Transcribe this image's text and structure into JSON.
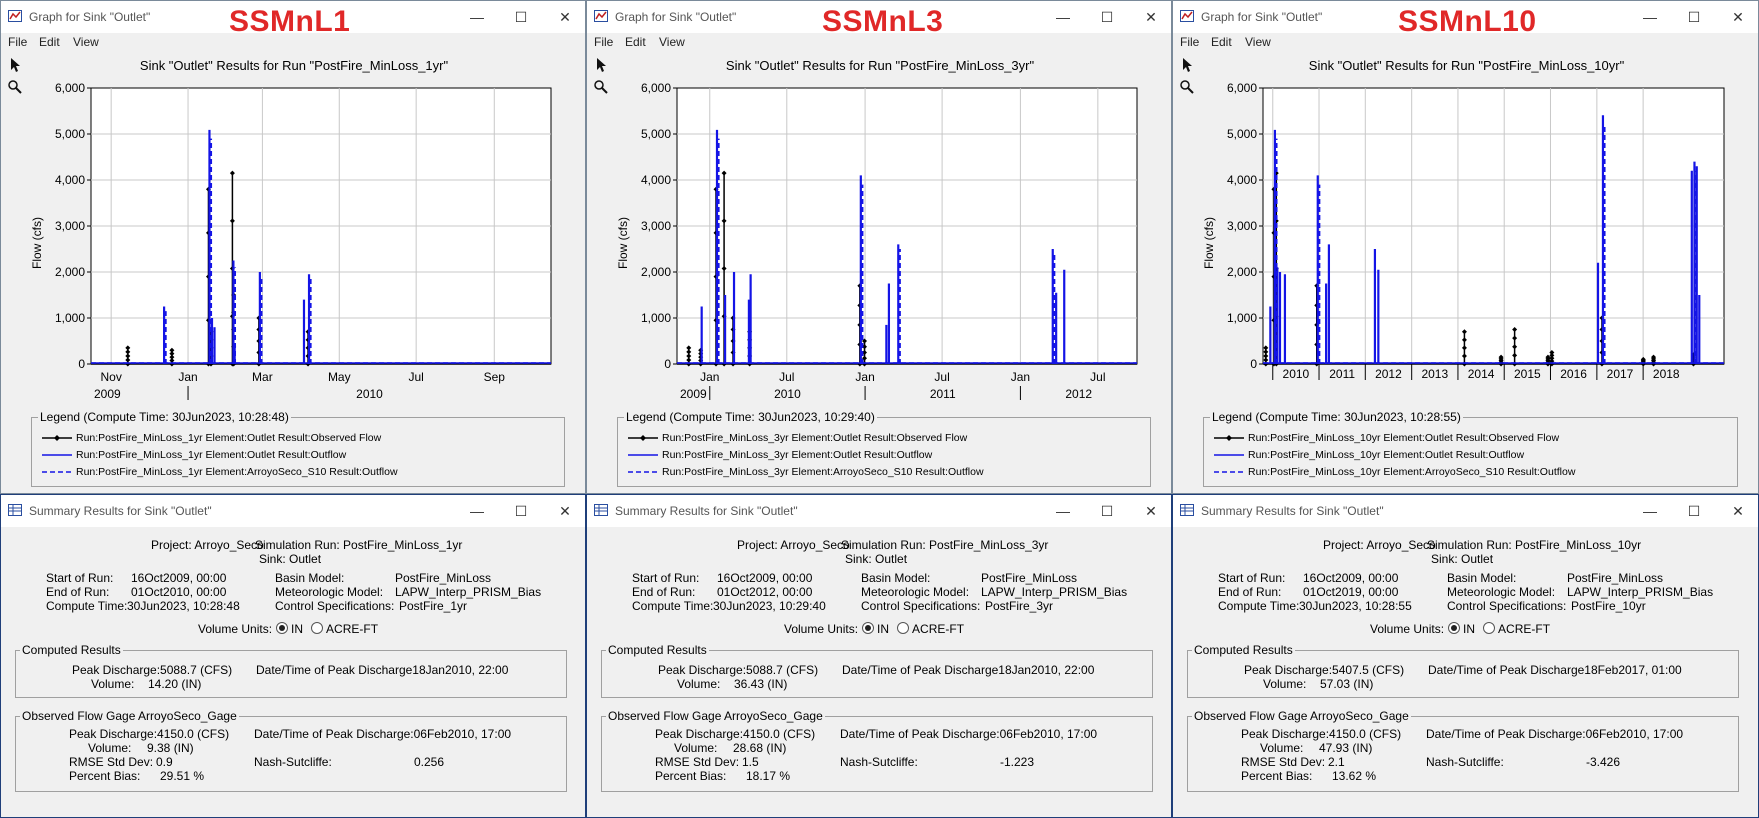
{
  "graphs": [
    {
      "window_title": "Graph for Sink \"Outlet\"",
      "run_label": "SSMnL1",
      "menu": [
        "File",
        "Edit",
        "View"
      ],
      "plot_title": "Sink \"Outlet\" Results for Run \"PostFire_MinLoss_1yr\"",
      "ylabel": "Flow (cfs)",
      "y_ticks": [
        "0",
        "1,000",
        "2,000",
        "3,000",
        "4,000",
        "5,000",
        "6,000"
      ],
      "x_ticks": [
        "Nov",
        "Jan",
        "Mar",
        "May",
        "Jul",
        "Sep"
      ],
      "year_labels": [
        "2009",
        "2010"
      ],
      "legend_title": "Legend (Compute Time: 30Jun2023, 10:28:48)",
      "legend_items": [
        "Run:PostFire_MinLoss_1yr Element:Outlet Result:Observed Flow",
        "Run:PostFire_MinLoss_1yr Element:Outlet Result:Outflow",
        "Run:PostFire_MinLoss_1yr Element:ArroyoSeco_S10 Result:Outflow"
      ],
      "chart_data": {
        "type": "line",
        "ylim": [
          0,
          6000
        ],
        "xlim": [
          "2009-10-16",
          "2010-10-16"
        ],
        "series": [
          {
            "name": "Run:PostFire_MinLoss_1yr Element:Outlet Result:Observed Flow",
            "color": "#000000",
            "style": "solid-marker",
            "x": [
              "2009-11-15",
              "2009-12-20",
              "2010-01-18",
              "2010-01-20",
              "2010-02-06",
              "2010-02-07",
              "2010-02-27",
              "2010-04-07"
            ],
            "y": [
              350,
              300,
              3800,
              700,
              4150,
              1500,
              1000,
              700
            ]
          },
          {
            "name": "Run:PostFire_MinLoss_1yr Element:Outlet Result:Outflow",
            "color": "#1414e6",
            "style": "solid",
            "x": [
              "2009-12-13",
              "2010-01-18",
              "2010-01-20",
              "2010-01-22",
              "2010-02-06",
              "2010-02-07",
              "2010-02-27",
              "2010-04-03",
              "2010-04-07"
            ],
            "y": [
              1250,
              5088.7,
              1000,
              800,
              2250,
              400,
              2000,
              1400,
              1950
            ]
          },
          {
            "name": "Run:PostFire_MinLoss_1yr Element:ArroyoSeco_S10 Result:Outflow",
            "color": "#1414e6",
            "style": "dashed",
            "x": [
              "2009-12-13",
              "2010-01-18",
              "2010-02-06",
              "2010-02-27",
              "2010-04-07"
            ],
            "y": [
              1150,
              4900,
              2100,
              1900,
              1850
            ]
          }
        ]
      }
    },
    {
      "window_title": "Graph for Sink \"Outlet\"",
      "run_label": "SSMnL3",
      "menu": [
        "File",
        "Edit",
        "View"
      ],
      "plot_title": "Sink \"Outlet\" Results for Run \"PostFire_MinLoss_3yr\"",
      "ylabel": "Flow (cfs)",
      "y_ticks": [
        "0",
        "1,000",
        "2,000",
        "3,000",
        "4,000",
        "5,000",
        "6,000"
      ],
      "x_ticks": [
        "Jan",
        "Jul",
        "Jan",
        "Jul",
        "Jan",
        "Jul"
      ],
      "year_labels": [
        "2009",
        "2010",
        "2011",
        "2012"
      ],
      "legend_title": "Legend (Compute Time: 30Jun2023, 10:29:40)",
      "legend_items": [
        "Run:PostFire_MinLoss_3yr Element:Outlet Result:Observed Flow",
        "Run:PostFire_MinLoss_3yr Element:Outlet Result:Outflow",
        "Run:PostFire_MinLoss_3yr Element:ArroyoSeco_S10 Result:Outflow"
      ],
      "chart_data": {
        "type": "line",
        "ylim": [
          0,
          6000
        ],
        "xlim": [
          "2009-10-16",
          "2012-10-01"
        ],
        "series": [
          {
            "name": "Run:PostFire_MinLoss_3yr Element:Outlet Result:Observed Flow",
            "color": "#000000",
            "style": "solid-marker",
            "x": [
              "2009-11-15",
              "2009-12-13",
              "2010-01-18",
              "2010-02-06",
              "2010-02-27",
              "2010-04-07",
              "2010-12-22",
              "2011-01-02"
            ],
            "y": [
              350,
              300,
              3800,
              4150,
              1000,
              700,
              1700,
              500
            ]
          },
          {
            "name": "Run:PostFire_MinLoss_3yr Element:Outlet Result:Outflow",
            "color": "#1414e6",
            "style": "solid",
            "x": [
              "2009-12-13",
              "2010-01-18",
              "2010-02-06",
              "2010-02-27",
              "2010-04-03",
              "2010-04-07",
              "2010-12-22",
              "2011-02-20",
              "2011-02-26",
              "2011-03-20",
              "2012-03-17",
              "2012-03-25",
              "2012-04-13"
            ],
            "y": [
              1250,
              5088.7,
              1500,
              2000,
              1400,
              1950,
              4100,
              850,
              1750,
              2600,
              2500,
              1550,
              2050
            ]
          },
          {
            "name": "Run:PostFire_MinLoss_3yr Element:ArroyoSeco_S10 Result:Outflow",
            "color": "#1414e6",
            "style": "dashed",
            "x": [
              "2010-01-18",
              "2010-12-22",
              "2011-03-20",
              "2012-03-17"
            ],
            "y": [
              4900,
              3900,
              2500,
              2400
            ]
          }
        ]
      }
    },
    {
      "window_title": "Graph for Sink \"Outlet\"",
      "run_label": "SSMnL10",
      "menu": [
        "File",
        "Edit",
        "View"
      ],
      "plot_title": "Sink \"Outlet\" Results for Run \"PostFire_MinLoss_10yr\"",
      "ylabel": "Flow (cfs)",
      "y_ticks": [
        "0",
        "1,000",
        "2,000",
        "3,000",
        "4,000",
        "5,000",
        "6,000"
      ],
      "x_ticks": [],
      "year_labels": [
        "2010",
        "2011",
        "2012",
        "2013",
        "2014",
        "2015",
        "2016",
        "2017",
        "2018"
      ],
      "legend_title": "Legend (Compute Time: 30Jun2023, 10:28:55)",
      "legend_items": [
        "Run:PostFire_MinLoss_10yr Element:Outlet Result:Observed Flow",
        "Run:PostFire_MinLoss_10yr Element:Outlet Result:Outflow",
        "Run:PostFire_MinLoss_10yr Element:ArroyoSeco_S10 Result:Outflow"
      ],
      "chart_data": {
        "type": "line",
        "ylim": [
          0,
          6000
        ],
        "xlim": [
          "2009-10-16",
          "2019-10-01"
        ],
        "series": [
          {
            "name": "Run:PostFire_MinLoss_10yr Element:Outlet Result:Observed Flow",
            "color": "#000000",
            "style": "solid-marker",
            "x": [
              "2009-11-15",
              "2010-01-18",
              "2010-02-06",
              "2010-12-22",
              "2014-03-01",
              "2014-12-15",
              "2015-04-01",
              "2015-12-20",
              "2016-01-20",
              "2017-02-18",
              "2018-01-10",
              "2018-04-01",
              "2019-02-10"
            ],
            "y": [
              350,
              3800,
              4150,
              1700,
              700,
              150,
              750,
              150,
              250,
              1000,
              100,
              150,
              200
            ]
          },
          {
            "name": "Run:PostFire_MinLoss_10yr Element:Outlet Result:Outflow",
            "color": "#1414e6",
            "style": "solid",
            "x": [
              "2009-12-13",
              "2010-01-18",
              "2010-02-06",
              "2010-02-27",
              "2010-04-07",
              "2010-12-22",
              "2011-02-26",
              "2011-03-20",
              "2012-03-17",
              "2012-04-13",
              "2017-01-10",
              "2017-02-18",
              "2019-01-20",
              "2019-02-10",
              "2019-02-28",
              "2019-03-20"
            ],
            "y": [
              1250,
              5088.7,
              2100,
              2000,
              1950,
              4100,
              1750,
              2600,
              2500,
              2050,
              2200,
              5407.5,
              4200,
              4400,
              4300,
              1500
            ]
          },
          {
            "name": "Run:PostFire_MinLoss_10yr Element:ArroyoSeco_S10 Result:Outflow",
            "color": "#1414e6",
            "style": "dashed",
            "x": [
              "2010-01-18",
              "2010-12-22",
              "2017-02-18",
              "2019-02-10"
            ],
            "y": [
              4900,
              3900,
              5200,
              4200
            ]
          }
        ]
      }
    }
  ],
  "summaries": [
    {
      "window_title": "Summary Results for Sink \"Outlet\"",
      "project": "Project: Arroyo_Seco",
      "sim_run": "Simulation Run: PostFire_MinLoss_1yr",
      "sink": "Sink: Outlet",
      "start_label": "Start of Run:",
      "start_value": "16Oct2009, 00:00",
      "end_label": "End of Run:",
      "end_value": "01Oct2010, 00:00",
      "compute_label": "Compute Time:",
      "compute_value": "30Jun2023, 10:28:48",
      "basin_label": "Basin Model:",
      "basin_value": "PostFire_MinLoss",
      "met_label": "Meteorologic Model:",
      "met_value": "LAPW_Interp_PRISM_Bias",
      "control_label": "Control Specifications:",
      "control_value": "PostFire_1yr",
      "volume_units_label": "Volume Units:",
      "units_in": "IN",
      "units_acre": "ACRE-FT",
      "computed_title": "Computed Results",
      "c_peak": "Peak Discharge:5088.7 (CFS)",
      "c_peak_dt": "Date/Time of Peak Discharge18Jan2010, 22:00",
      "c_volume_label": "Volume:",
      "c_volume": "14.20 (IN)",
      "observed_title": "Observed Flow Gage ArroyoSeco_Gage",
      "o_peak": "Peak Discharge:4150.0 (CFS)",
      "o_peak_dt": "Date/Time of Peak Discharge:06Feb2010, 17:00",
      "o_volume_label": "Volume:",
      "o_volume": "9.38 (IN)",
      "rmse_label": "RMSE Std Dev:",
      "rmse": "0.9",
      "nash_label": "Nash-Sutcliffe:",
      "nash": "0.256",
      "bias_label": "Percent Bias:",
      "bias": "29.51 %"
    },
    {
      "window_title": "Summary Results for Sink \"Outlet\"",
      "project": "Project: Arroyo_Seco",
      "sim_run": "Simulation Run: PostFire_MinLoss_3yr",
      "sink": "Sink: Outlet",
      "start_label": "Start of Run:",
      "start_value": "16Oct2009, 00:00",
      "end_label": "End of Run:",
      "end_value": "01Oct2012, 00:00",
      "compute_label": "Compute Time:",
      "compute_value": "30Jun2023, 10:29:40",
      "basin_label": "Basin Model:",
      "basin_value": "PostFire_MinLoss",
      "met_label": "Meteorologic Model:",
      "met_value": "LAPW_Interp_PRISM_Bias",
      "control_label": "Control Specifications:",
      "control_value": "PostFire_3yr",
      "volume_units_label": "Volume Units:",
      "units_in": "IN",
      "units_acre": "ACRE-FT",
      "computed_title": "Computed Results",
      "c_peak": "Peak Discharge:5088.7 (CFS)",
      "c_peak_dt": "Date/Time of Peak Discharge18Jan2010, 22:00",
      "c_volume_label": "Volume:",
      "c_volume": "36.43 (IN)",
      "observed_title": "Observed Flow Gage ArroyoSeco_Gage",
      "o_peak": "Peak Discharge:4150.0 (CFS)",
      "o_peak_dt": "Date/Time of Peak Discharge:06Feb2010, 17:00",
      "o_volume_label": "Volume:",
      "o_volume": "28.68 (IN)",
      "rmse_label": "RMSE Std Dev:",
      "rmse": "1.5",
      "nash_label": "Nash-Sutcliffe:",
      "nash": "-1.223",
      "bias_label": "Percent Bias:",
      "bias": "18.17 %"
    },
    {
      "window_title": "Summary Results for Sink \"Outlet\"",
      "project": "Project: Arroyo_Seco",
      "sim_run": "Simulation Run: PostFire_MinLoss_10yr",
      "sink": "Sink: Outlet",
      "start_label": "Start of Run:",
      "start_value": "16Oct2009, 00:00",
      "end_label": "End of Run:",
      "end_value": "01Oct2019, 00:00",
      "compute_label": "Compute Time:",
      "compute_value": "30Jun2023, 10:28:55",
      "basin_label": "Basin Model:",
      "basin_value": "PostFire_MinLoss",
      "met_label": "Meteorologic Model:",
      "met_value": "LAPW_Interp_PRISM_Bias",
      "control_label": "Control Specifications:",
      "control_value": "PostFire_10yr",
      "volume_units_label": "Volume Units:",
      "units_in": "IN",
      "units_acre": "ACRE-FT",
      "computed_title": "Computed Results",
      "c_peak": "Peak Discharge:5407.5 (CFS)",
      "c_peak_dt": "Date/Time of Peak Discharge18Feb2017, 01:00",
      "c_volume_label": "Volume:",
      "c_volume": "57.03 (IN)",
      "observed_title": "Observed Flow Gage ArroyoSeco_Gage",
      "o_peak": "Peak Discharge:4150.0 (CFS)",
      "o_peak_dt": "Date/Time of Peak Discharge:06Feb2010, 17:00",
      "o_volume_label": "Volume:",
      "o_volume": "47.93 (IN)",
      "rmse_label": "RMSE Std Dev:",
      "rmse": "2.1",
      "nash_label": "Nash-Sutcliffe:",
      "nash": "-3.426",
      "bias_label": "Percent Bias:",
      "bias": "13.62 %"
    }
  ],
  "colors": {
    "outflow": "#1414e6",
    "observed": "#000000",
    "run_label": "#e02828"
  },
  "icons": [
    "graph-app-icon",
    "table-app-icon",
    "pointer-tool-icon",
    "zoom-tool-icon",
    "minimize-icon",
    "maximize-icon",
    "close-icon"
  ],
  "volume_units_selected": "IN"
}
